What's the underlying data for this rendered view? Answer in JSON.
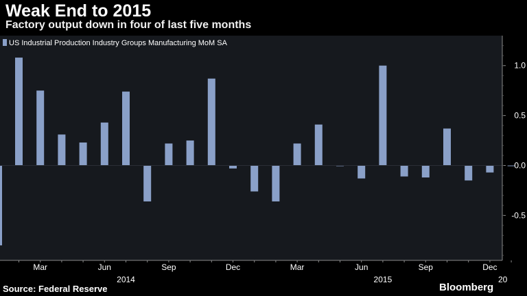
{
  "title": "Weak End to 2015",
  "subtitle": "Factory output down in four of last five months",
  "source": "Source: Federal Reserve",
  "brand": "Bloomberg",
  "colors": {
    "background": "#000000",
    "plot_background": "#16191e",
    "bar": "#8aa0c8",
    "axis": "#8a8a8a",
    "text": "#ffffff"
  },
  "chart_data": {
    "type": "bar",
    "legend": {
      "label": "US Industrial Production Industry Groups Manufacturing MoM SA",
      "position": "top-left"
    },
    "x": [
      "2014-01",
      "2014-02",
      "2014-03",
      "2014-04",
      "2014-05",
      "2014-06",
      "2014-07",
      "2014-08",
      "2014-09",
      "2014-10",
      "2014-11",
      "2014-12",
      "2015-01",
      "2015-02",
      "2015-03",
      "2015-04",
      "2015-05",
      "2015-06",
      "2015-07",
      "2015-08",
      "2015-09",
      "2015-10",
      "2015-11",
      "2015-12"
    ],
    "series": [
      {
        "name": "US Industrial Production Industry Groups Manufacturing MoM SA",
        "values": [
          1.08,
          0.75,
          0.31,
          0.23,
          0.43,
          0.74,
          -0.36,
          0.22,
          0.25,
          0.87,
          -0.03,
          -0.26,
          -0.36,
          0.22,
          0.41,
          0.0,
          -0.13,
          1.0,
          -0.11,
          -0.12,
          0.37,
          -0.15,
          -0.07,
          0.0
        ]
      }
    ],
    "ylim": [
      -0.95,
      1.3
    ],
    "yticks": [
      1.0,
      0.5,
      0.0,
      -0.5
    ],
    "ytick_labels": [
      "1.0",
      "0.5",
      "0.0",
      "-0.5"
    ],
    "xtick_labels": [
      {
        "label": "Mar",
        "index": 1
      },
      {
        "label": "Jun",
        "index": 4
      },
      {
        "label": "Sep",
        "index": 7
      },
      {
        "label": "Dec",
        "index": 10
      },
      {
        "label": "Mar",
        "index": 13
      },
      {
        "label": "Jun",
        "index": 16
      },
      {
        "label": "Sep",
        "index": 19
      },
      {
        "label": "Dec",
        "index": 22
      }
    ],
    "year_labels": [
      {
        "label": "2014",
        "index": 5
      },
      {
        "label": "2015",
        "index": 17
      },
      {
        "label": "20",
        "index": 24
      }
    ],
    "leading_value": -0.8,
    "grid": false,
    "yaxis_side": "right"
  }
}
